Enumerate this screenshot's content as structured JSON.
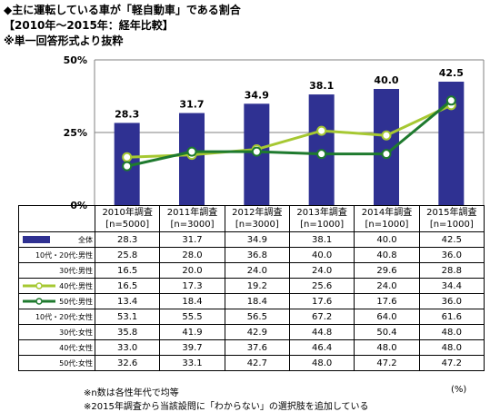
{
  "titles": [
    "◆主に運転している車が「軽自動車」である割合",
    "【2010年～2015年：経年比較】",
    "※単一回答形式より抜粋"
  ],
  "chart_data": {
    "type": "bar",
    "categories": [
      "2010年調査",
      "2011年調査",
      "2012年調査",
      "2013年調査",
      "2014年調査",
      "2015年調査"
    ],
    "sample_sizes": [
      "[n=5000]",
      "[n=3000]",
      "[n=3000]",
      "[n=1000]",
      "[n=1000]",
      "[n=1000]"
    ],
    "ylim": [
      0,
      50
    ],
    "y_ticks": [
      "0%",
      "25%",
      "50%"
    ],
    "bar_series": {
      "name": "全体",
      "values": [
        28.3,
        31.7,
        34.9,
        38.1,
        40.0,
        42.5
      ],
      "color": "#2f3192"
    },
    "line_series": [
      {
        "name": "40代:男性",
        "values": [
          16.5,
          17.3,
          19.2,
          25.6,
          24.0,
          34.4
        ],
        "color": "#a6c832"
      },
      {
        "name": "50代:男性",
        "values": [
          13.4,
          18.4,
          18.4,
          17.6,
          17.6,
          36.0
        ],
        "color": "#1e7a2e"
      }
    ],
    "table_rows": [
      {
        "label": "全体",
        "values": [
          "28.3",
          "31.7",
          "34.9",
          "38.1",
          "40.0",
          "42.5"
        ],
        "legend": "bar"
      },
      {
        "label": "10代・20代:男性",
        "values": [
          "25.8",
          "28.0",
          "36.8",
          "40.0",
          "40.8",
          "36.0"
        ],
        "legend": ""
      },
      {
        "label": "30代:男性",
        "values": [
          "16.5",
          "20.0",
          "24.0",
          "24.0",
          "29.6",
          "28.8"
        ],
        "legend": ""
      },
      {
        "label": "40代:男性",
        "values": [
          "16.5",
          "17.3",
          "19.2",
          "25.6",
          "24.0",
          "34.4"
        ],
        "legend": "line0"
      },
      {
        "label": "50代:男性",
        "values": [
          "13.4",
          "18.4",
          "18.4",
          "17.6",
          "17.6",
          "36.0"
        ],
        "legend": "line1"
      },
      {
        "label": "10代・20代:女性",
        "values": [
          "53.1",
          "55.5",
          "56.5",
          "67.2",
          "64.0",
          "61.6"
        ],
        "legend": ""
      },
      {
        "label": "30代:女性",
        "values": [
          "35.8",
          "41.9",
          "42.9",
          "44.8",
          "50.4",
          "48.0"
        ],
        "legend": ""
      },
      {
        "label": "40代:女性",
        "values": [
          "33.0",
          "39.7",
          "37.6",
          "46.4",
          "48.0",
          "48.0"
        ],
        "legend": ""
      },
      {
        "label": "50代:女性",
        "values": [
          "32.6",
          "33.1",
          "42.7",
          "48.0",
          "47.2",
          "47.2"
        ],
        "legend": ""
      }
    ],
    "unit": "(%)"
  },
  "footnotes": [
    "※n数は各性年代で均等",
    "※2015年調査から当該設問に「わからない」の選択肢を追加している"
  ]
}
